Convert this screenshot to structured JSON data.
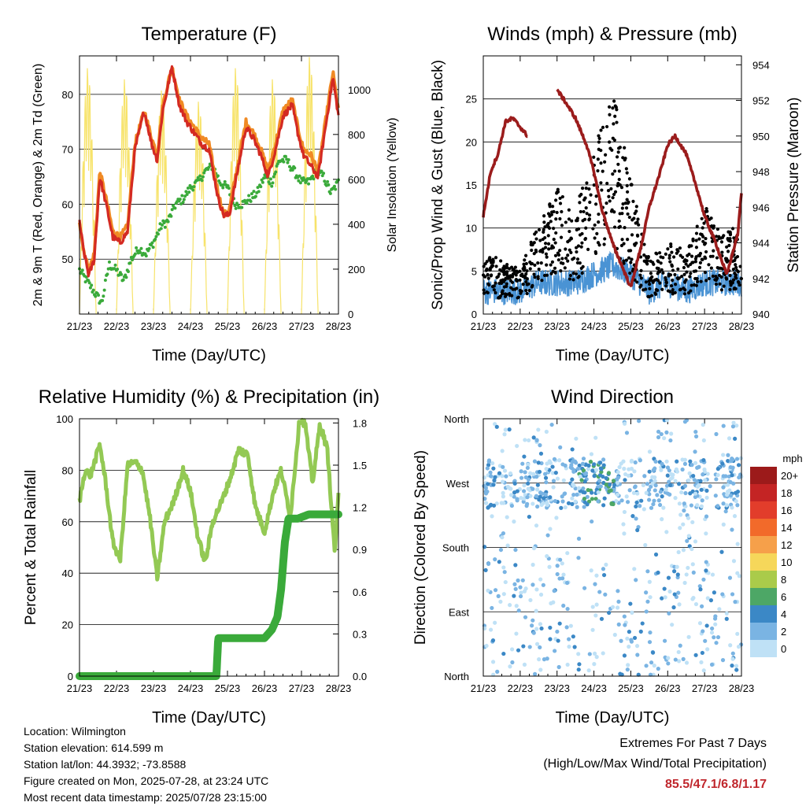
{
  "chart_data": [
    {
      "type": "line",
      "title": "Temperature (F)",
      "xlabel": "Time (Day/UTC)",
      "ylabel": "2m & 9m T (Red, Orange) & 2m Td (Green)",
      "y2label": "Solar Insolation (Yellow)",
      "x_ticks": [
        "21/23",
        "22/23",
        "23/23",
        "24/23",
        "25/23",
        "26/23",
        "27/23",
        "28/23"
      ],
      "ylim": [
        40,
        87
      ],
      "y_ticks": [
        50,
        60,
        70,
        80
      ],
      "y2lim": [
        0,
        1150
      ],
      "y2_ticks": [
        0,
        200,
        400,
        600,
        800,
        1000
      ],
      "grid": "horizontal",
      "series": [
        {
          "key": "t9m",
          "color": "#f08a24",
          "x": [
            0,
            0.1,
            0.25,
            0.4,
            0.55,
            0.75,
            0.9,
            1.1,
            1.3,
            1.5,
            1.75,
            1.95,
            2.1,
            2.25,
            2.5,
            2.7,
            2.9,
            3.1,
            3.3,
            3.5,
            3.75,
            3.9,
            4.05,
            4.3,
            4.5,
            4.7,
            4.9,
            5.1,
            5.3,
            5.5,
            5.75,
            5.9,
            6.05,
            6.25,
            6.45,
            6.65,
            6.85,
            7.0
          ],
          "values": [
            57,
            52,
            48,
            51,
            66,
            60,
            55,
            54,
            56,
            71,
            77,
            72,
            69,
            78,
            85,
            79,
            76,
            74,
            72,
            71,
            62,
            58,
            59,
            68,
            75,
            73,
            70,
            66,
            71,
            77,
            79,
            74,
            70,
            69,
            66,
            75,
            84,
            77
          ]
        },
        {
          "key": "t2m",
          "color": "#d42a22",
          "x": [
            0,
            0.1,
            0.25,
            0.4,
            0.55,
            0.75,
            0.9,
            1.1,
            1.3,
            1.5,
            1.75,
            1.95,
            2.1,
            2.25,
            2.5,
            2.7,
            2.9,
            3.1,
            3.3,
            3.5,
            3.75,
            3.9,
            4.05,
            4.3,
            4.5,
            4.7,
            4.9,
            5.1,
            5.3,
            5.5,
            5.75,
            5.9,
            6.05,
            6.25,
            6.45,
            6.65,
            6.85,
            7.0
          ],
          "values": [
            57,
            52,
            47,
            50,
            65,
            59,
            54,
            53,
            55,
            70,
            77,
            71,
            68,
            77,
            85,
            78,
            75,
            73,
            71,
            70,
            61,
            58,
            58,
            67,
            74,
            72,
            69,
            65,
            70,
            76,
            78,
            73,
            69,
            67,
            65,
            74,
            83,
            76
          ]
        },
        {
          "key": "td",
          "color": "#3aaa3a",
          "x": [
            0,
            0.2,
            0.4,
            0.6,
            0.8,
            1.0,
            1.2,
            1.4,
            1.6,
            1.8,
            2.0,
            2.2,
            2.4,
            2.6,
            2.8,
            3.0,
            3.2,
            3.4,
            3.6,
            3.8,
            4.0,
            4.2,
            4.4,
            4.6,
            4.8,
            5.0,
            5.2,
            5.4,
            5.6,
            5.8,
            6.0,
            6.2,
            6.4,
            6.6,
            6.8,
            7.0
          ],
          "values": [
            48,
            46,
            44,
            42,
            49,
            48,
            46,
            50,
            52,
            51,
            53,
            56,
            57,
            60,
            61,
            63,
            64,
            66,
            67,
            64,
            63,
            60,
            60,
            61,
            62,
            65,
            64,
            68,
            68,
            66,
            64,
            64,
            66,
            65,
            62,
            64
          ]
        },
        {
          "key": "solar",
          "color": "#f7e36a",
          "axis": "y2",
          "days_peak": [
            1100,
            1050,
            1000,
            950,
            1100,
            1050,
            1150
          ]
        }
      ]
    },
    {
      "type": "scatter",
      "title": "Winds (mph) & Pressure (mb)",
      "xlabel": "Time (Day/UTC)",
      "ylabel": "Sonic/Prop Wind & Gust (Blue, Black)",
      "y2label": "Station Pressure (Maroon)",
      "x_ticks": [
        "21/23",
        "22/23",
        "23/23",
        "24/23",
        "25/23",
        "26/23",
        "27/23",
        "28/23"
      ],
      "ylim": [
        0,
        30
      ],
      "y_ticks": [
        0,
        5,
        10,
        15,
        20,
        25
      ],
      "y2lim": [
        940,
        954.5
      ],
      "y2_ticks": [
        940,
        942,
        944,
        946,
        948,
        950,
        952,
        954
      ],
      "grid": "horizontal",
      "gust_envelope": {
        "x": [
          0,
          0.5,
          1,
          1.5,
          2,
          2.5,
          3,
          3.5,
          4,
          4.5,
          5,
          5.5,
          6,
          6.5,
          7
        ],
        "values": [
          7,
          6,
          5,
          10,
          14,
          12,
          18,
          25,
          15,
          6,
          8,
          7,
          12,
          9,
          10
        ]
      },
      "wind_envelope": {
        "x": [
          0,
          0.5,
          1,
          1.5,
          2,
          2.5,
          3,
          3.5,
          4,
          4.5,
          5,
          5.5,
          6,
          6.5,
          7
        ],
        "values": [
          2,
          2,
          2,
          3,
          3,
          3,
          4,
          5,
          4,
          2,
          3,
          2,
          3,
          3,
          3
        ]
      },
      "pressure": {
        "color": "#9b1c1c",
        "segments": [
          {
            "x": [
              0,
              0.2,
              0.4,
              0.6,
              0.8,
              1.0,
              1.2
            ],
            "values": [
              945.5,
              948,
              949,
              950.8,
              951,
              950.5,
              950
            ]
          },
          {
            "x": [
              2.0,
              2.2,
              2.5,
              2.8,
              3.0,
              3.2,
              3.5,
              3.8,
              4.0,
              4.3,
              4.5,
              4.8,
              5.0,
              5.2,
              5.5,
              5.8,
              6.0,
              6.3,
              6.6,
              6.9,
              7.0
            ],
            "values": [
              952.6,
              952,
              951,
              949.5,
              948,
              946,
              944,
              942.5,
              941.5,
              944,
              946,
              948,
              949.5,
              950,
              949,
              947,
              945.5,
              944,
              942.2,
              944.5,
              946.8
            ]
          }
        ]
      }
    },
    {
      "type": "line",
      "title": "Relative Humidity (%) & Precipitation (in)",
      "xlabel": "Time (Day/UTC)",
      "ylabel": "Percent & Total Rainfall",
      "x_ticks": [
        "21/23",
        "22/23",
        "23/23",
        "24/23",
        "25/23",
        "26/23",
        "27/23",
        "28/23"
      ],
      "ylim": [
        0,
        100
      ],
      "y_ticks": [
        0,
        20,
        40,
        60,
        80,
        100
      ],
      "y2lim": [
        0,
        1.83
      ],
      "y2_ticks": [
        "0.0",
        "0.3",
        "0.6",
        "0.9",
        "1.2",
        "1.5",
        "1.8"
      ],
      "grid": "horizontal",
      "series": [
        {
          "key": "rh",
          "color": "#93c954",
          "x": [
            0,
            0.15,
            0.3,
            0.55,
            0.7,
            0.9,
            1.1,
            1.3,
            1.5,
            1.7,
            1.9,
            2.1,
            2.3,
            2.55,
            2.8,
            3.0,
            3.2,
            3.4,
            3.6,
            3.85,
            4.1,
            4.3,
            4.55,
            4.75,
            5.0,
            5.25,
            5.45,
            5.7,
            5.95,
            6.1,
            6.3,
            6.5,
            6.7,
            6.9,
            7.0
          ],
          "values": [
            68,
            80,
            78,
            90,
            76,
            52,
            45,
            82,
            83,
            80,
            62,
            38,
            60,
            68,
            80,
            72,
            54,
            44,
            60,
            68,
            78,
            88,
            86,
            66,
            56,
            72,
            80,
            62,
            100,
            98,
            75,
            98,
            88,
            48,
            70
          ]
        },
        {
          "key": "precip",
          "color": "#3aaa3a",
          "x": [
            0,
            1,
            2,
            3,
            3.7,
            3.75,
            4.5,
            5.0,
            5.2,
            5.35,
            5.45,
            5.55,
            5.65,
            5.9,
            6.2,
            6.5,
            7.0
          ],
          "values": [
            0,
            0,
            0,
            0,
            0,
            0.27,
            0.27,
            0.27,
            0.33,
            0.42,
            0.62,
            0.95,
            1.12,
            1.12,
            1.15,
            1.15,
            1.15
          ]
        }
      ]
    },
    {
      "type": "scatter",
      "title": "Wind Direction",
      "xlabel": "Time (Day/UTC)",
      "ylabel": "Direction (Colored By Speed)",
      "x_ticks": [
        "21/23",
        "22/23",
        "23/23",
        "24/23",
        "25/23",
        "26/23",
        "27/23",
        "28/23"
      ],
      "y_ticks": [
        "North",
        "East",
        "South",
        "West",
        "North"
      ],
      "ylim": [
        0,
        360
      ],
      "grid": "horizontal",
      "colorbar": {
        "unit": "mph",
        "labels": [
          "20+",
          "18",
          "16",
          "14",
          "12",
          "10",
          "8",
          "6",
          "4",
          "2",
          "0"
        ],
        "colors": [
          "#9c1a1a",
          "#c42424",
          "#e23d2b",
          "#f26a2a",
          "#f6a04a",
          "#f6d75a",
          "#aacb4a",
          "#4da766",
          "#3b88c6",
          "#7ab4e3",
          "#bfe1f6"
        ]
      }
    }
  ],
  "info": {
    "location": "Location: Wilmington",
    "elevation": "Station elevation: 614.599 m",
    "latlon": "Station lat/lon: 44.3932; -73.8588",
    "created": "Figure created on Mon, 2025-07-28, at 23:24 UTC",
    "timestamp": "Most recent data timestamp: 2025/07/28 23:15:00"
  },
  "extremes": {
    "title": "Extremes For Past 7 Days",
    "subtitle": "(High/Low/Max Wind/Total Precipitation)",
    "values": "85.5/47.1/6.8/1.17"
  }
}
